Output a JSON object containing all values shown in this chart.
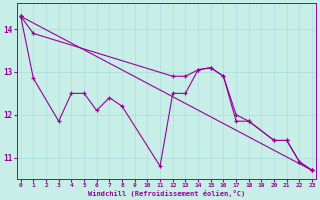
{
  "xlabel": "Windchill (Refroidissement éolien,°C)",
  "background_color": "#c8eee8",
  "line_color": "#990099",
  "grid_color": "#aadddd",
  "x_ticks": [
    0,
    1,
    2,
    3,
    4,
    5,
    6,
    7,
    8,
    9,
    10,
    11,
    12,
    13,
    14,
    15,
    16,
    17,
    18,
    19,
    20,
    21,
    22,
    23
  ],
  "y_ticks": [
    11,
    12,
    13,
    14
  ],
  "ylim": [
    10.5,
    14.6
  ],
  "xlim": [
    -0.3,
    23.3
  ],
  "series1_x": [
    0,
    1,
    3,
    4,
    5,
    6,
    7,
    8,
    11,
    12,
    13,
    14,
    15,
    16,
    17,
    18,
    20,
    21,
    22,
    23
  ],
  "series1_y": [
    14.3,
    12.85,
    11.85,
    12.5,
    12.5,
    12.1,
    12.4,
    12.2,
    10.8,
    12.5,
    12.5,
    13.05,
    13.1,
    12.9,
    11.85,
    11.85,
    11.4,
    11.4,
    10.9,
    10.7
  ],
  "series2_x": [
    0,
    23
  ],
  "series2_y": [
    14.3,
    10.7
  ],
  "series3_x": [
    0,
    1,
    12,
    13,
    14,
    15,
    16,
    17,
    18,
    20,
    21,
    22,
    23
  ],
  "series3_y": [
    14.3,
    13.9,
    12.9,
    12.9,
    13.05,
    13.1,
    12.9,
    12.0,
    11.85,
    11.4,
    11.4,
    10.9,
    10.7
  ]
}
